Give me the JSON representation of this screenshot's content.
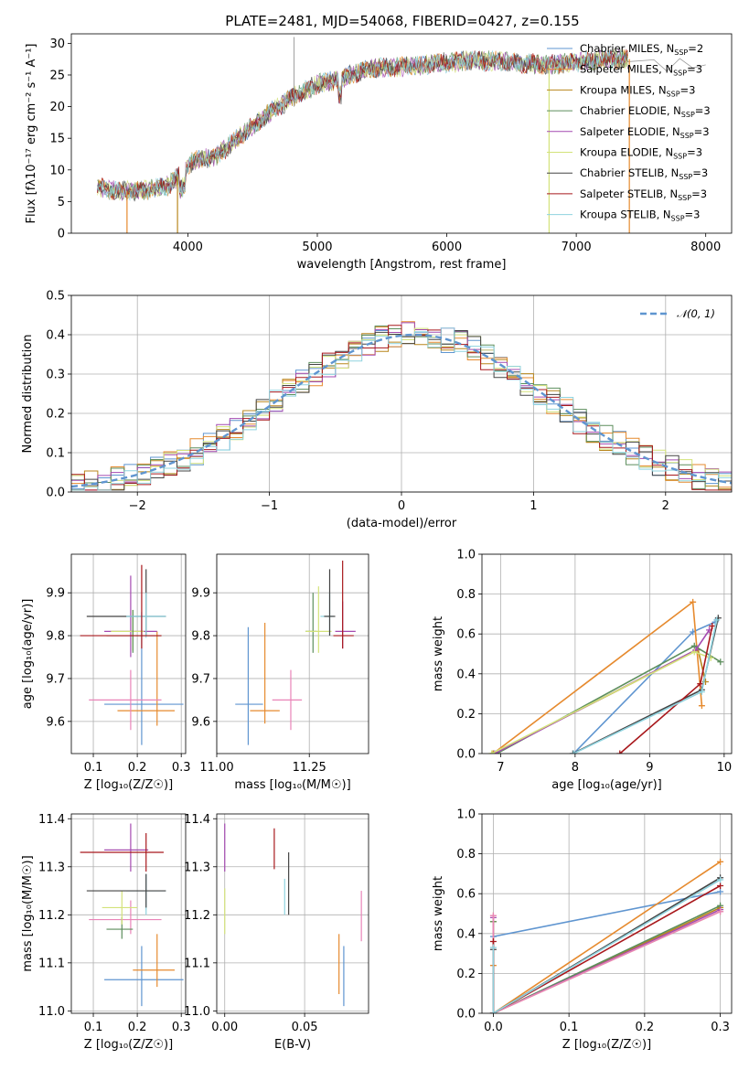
{
  "figure": {
    "title": "PLATE=2481, MJD=54068, FIBERID=0427, z=0.155"
  },
  "colors": {
    "c0": "#5f95d0",
    "c1": "#e68a2e",
    "c2": "#b8861c",
    "c3": "#5c8e5c",
    "c4": "#a44ab0",
    "c5": "#d3e27a",
    "c6": "#444444",
    "c7": "#a8181c",
    "c8": "#8fd3df",
    "c9": "#e984b8"
  },
  "chart_data": [
    {
      "id": "spectrum",
      "type": "line",
      "title": "PLATE=2481, MJD=54068, FIBERID=0427, z=0.155",
      "xlabel": "wavelength [Angstrom, rest frame]",
      "ylabel": "Flux [fλ10⁻¹⁷ erg cm⁻² s⁻¹ A⁻¹]",
      "xlim": [
        3100,
        8200
      ],
      "ylim": [
        0,
        31.5
      ],
      "xticks": [
        4000,
        5000,
        6000,
        7000,
        8000
      ],
      "yticks": [
        0,
        5,
        10,
        15,
        20,
        25,
        30
      ],
      "grid": false,
      "legend": "top-right",
      "series": [
        {
          "name": "Chabrier MILES, N_SSP=2",
          "color": "c0"
        },
        {
          "name": "Salpeter MILES, N_SSP=3",
          "color": "c1"
        },
        {
          "name": "Kroupa MILES, N_SSP=3",
          "color": "c2"
        },
        {
          "name": "Chabrier ELODIE, N_SSP=3",
          "color": "c3"
        },
        {
          "name": "Salpeter ELODIE, N_SSP=3",
          "color": "c4"
        },
        {
          "name": "Kroupa ELODIE, N_SSP=3",
          "color": "c5"
        },
        {
          "name": "Chabrier STELIB, N_SSP=3",
          "color": "c6"
        },
        {
          "name": "Salpeter STELIB, N_SSP=3",
          "color": "c7"
        },
        {
          "name": "Kroupa STELIB, N_SSP=3",
          "color": "c8"
        }
      ],
      "continuum": [
        [
          3300,
          7.2
        ],
        [
          3500,
          6.6
        ],
        [
          3700,
          6.8
        ],
        [
          3850,
          7.5
        ],
        [
          3950,
          9.5
        ],
        [
          4050,
          11.5
        ],
        [
          4200,
          12
        ],
        [
          4300,
          13.5
        ],
        [
          4500,
          17
        ],
        [
          4700,
          20
        ],
        [
          4850,
          22
        ],
        [
          5000,
          23.5
        ],
        [
          5200,
          24.5
        ],
        [
          5400,
          26
        ],
        [
          5600,
          26.2
        ],
        [
          5800,
          26.5
        ],
        [
          6000,
          27
        ],
        [
          6200,
          27.3
        ],
        [
          6400,
          27.2
        ],
        [
          6600,
          26.8
        ],
        [
          6800,
          26.6
        ],
        [
          7000,
          27
        ],
        [
          7200,
          27.4
        ],
        [
          7400,
          27.5
        ]
      ],
      "tail": [
        [
          7400,
          27.5
        ],
        [
          7600,
          26.8
        ],
        [
          7700,
          26
        ],
        [
          7800,
          27
        ],
        [
          7900,
          26.5
        ],
        [
          8000,
          26
        ]
      ]
    },
    {
      "id": "residuals",
      "type": "step",
      "xlabel": "(data-model)/error",
      "ylabel": "Normed distribution",
      "xlim": [
        -2.5,
        2.5
      ],
      "ylim": [
        0,
        0.5
      ],
      "xticks": [
        -2,
        -1,
        0,
        1,
        2
      ],
      "xtick_labels": [
        "−2",
        "−1",
        "0",
        "1",
        "2"
      ],
      "yticks": [
        0,
        0.1,
        0.2,
        0.3,
        0.4,
        0.5
      ],
      "ytick_labels": [
        "0.0",
        "0.1",
        "0.2",
        "0.3",
        "0.4",
        "0.5"
      ],
      "grid": true,
      "legend": "top-right",
      "reference": {
        "name": "𝒩(0, 1)",
        "color": "c0",
        "mean": 0.1,
        "sigma": 1.0,
        "peak": 0.4
      },
      "bin_width": 0.1,
      "series_colors": [
        "c0",
        "c1",
        "c2",
        "c3",
        "c4",
        "c5",
        "c6",
        "c7",
        "c8"
      ]
    },
    {
      "id": "age-vs-Z",
      "type": "errorbar",
      "xlabel": "Z [log₁₀(Z/Z☉)]",
      "ylabel": "age  [log₁₀(age/yr)]",
      "xlim": [
        0.05,
        0.31
      ],
      "ylim": [
        9.525,
        9.99
      ],
      "xticks": [
        0.1,
        0.2,
        0.3
      ],
      "xtick_labels": [
        "0.1",
        "0.2",
        "0.3"
      ],
      "yticks": [
        9.6,
        9.7,
        9.8,
        9.9
      ],
      "ytick_labels": [
        "9.6",
        "9.7",
        "9.8",
        "9.9"
      ],
      "grid": true,
      "points": [
        {
          "color": "c0",
          "x": 0.21,
          "xerr": [
            0.125,
            0.305
          ],
          "y": 9.64,
          "yerr": [
            9.545,
            9.855
          ]
        },
        {
          "color": "c1",
          "x": 0.245,
          "xerr": [
            0.155,
            0.285
          ],
          "y": 9.625,
          "yerr": [
            9.59,
            9.81
          ]
        },
        {
          "color": "c9",
          "x": 0.185,
          "xerr": [
            0.09,
            0.255
          ],
          "y": 9.65,
          "yerr": [
            9.58,
            9.72
          ]
        },
        {
          "color": "c4",
          "x": 0.185,
          "xerr": [
            0.125,
            0.245
          ],
          "y": 9.81,
          "yerr": [
            9.75,
            9.94
          ]
        },
        {
          "color": "c5",
          "x": 0.19,
          "xerr": [
            0.14,
            0.215
          ],
          "y": 9.81,
          "yerr": [
            9.765,
            9.86
          ]
        },
        {
          "color": "c3",
          "x": 0.19,
          "xerr": [
            0.13,
            0.255
          ],
          "y": 9.8,
          "yerr": [
            9.76,
            9.86
          ]
        },
        {
          "color": "c6",
          "x": 0.22,
          "xerr": [
            0.085,
            0.265
          ],
          "y": 9.845,
          "yerr": [
            9.8,
            9.955
          ]
        },
        {
          "color": "c8",
          "x": 0.22,
          "xerr": [
            0.175,
            0.265
          ],
          "y": 9.845,
          "yerr": [
            9.795,
            9.9
          ]
        },
        {
          "color": "c7",
          "x": 0.21,
          "xerr": [
            0.07,
            0.255
          ],
          "y": 9.8,
          "yerr": [
            9.77,
            9.965
          ]
        }
      ]
    },
    {
      "id": "age-vs-mass",
      "type": "errorbar",
      "xlabel": "mass [log₁₀(M/M☉)]",
      "xlim": [
        11.0,
        11.41
      ],
      "ylim": [
        9.525,
        9.99
      ],
      "xticks": [
        11.0,
        11.25
      ],
      "xtick_labels": [
        "11.00",
        "11.25"
      ],
      "yticks": [
        9.6,
        9.7,
        9.8,
        9.9
      ],
      "ytick_labels": [
        "9.6",
        "9.7",
        "9.8",
        "9.9"
      ],
      "grid": true,
      "points": [
        {
          "color": "c0",
          "x": 11.085,
          "xerr": [
            11.05,
            11.125
          ],
          "y": 9.64,
          "yerr": [
            9.545,
            9.82
          ]
        },
        {
          "color": "c1",
          "x": 11.13,
          "xerr": [
            11.09,
            11.17
          ],
          "y": 9.625,
          "yerr": [
            9.595,
            9.83
          ]
        },
        {
          "color": "c9",
          "x": 11.2,
          "xerr": [
            11.15,
            11.23
          ],
          "y": 9.65,
          "yerr": [
            9.58,
            9.72
          ]
        },
        {
          "color": "c3",
          "x": 11.26,
          "xerr": [
            11.24,
            11.27
          ],
          "y": 9.81,
          "yerr": [
            9.76,
            9.9
          ]
        },
        {
          "color": "c5",
          "x": 11.275,
          "xerr": [
            11.24,
            11.31
          ],
          "y": 9.81,
          "yerr": [
            9.76,
            9.915
          ]
        },
        {
          "color": "c8",
          "x": 11.305,
          "xerr": [
            11.28,
            11.315
          ],
          "y": 9.845,
          "yerr": [
            9.8,
            9.9
          ]
        },
        {
          "color": "c6",
          "x": 11.305,
          "xerr": [
            11.29,
            11.32
          ],
          "y": 9.845,
          "yerr": [
            9.8,
            9.955
          ]
        },
        {
          "color": "c4",
          "x": 11.34,
          "xerr": [
            11.32,
            11.375
          ],
          "y": 9.81,
          "yerr": [
            9.77,
            9.88
          ]
        },
        {
          "color": "c7",
          "x": 11.34,
          "xerr": [
            11.315,
            11.37
          ],
          "y": 9.8,
          "yerr": [
            9.77,
            9.975
          ]
        }
      ]
    },
    {
      "id": "weight-vs-age",
      "type": "line",
      "xlabel": "age  [log₁₀(age/yr)]",
      "ylabel": "mass weight",
      "xlim": [
        6.75,
        10.1
      ],
      "ylim": [
        0,
        1
      ],
      "xticks": [
        7,
        8,
        9,
        10
      ],
      "xtick_labels": [
        "7",
        "8",
        "9",
        "10"
      ],
      "yticks": [
        0,
        0.2,
        0.4,
        0.6,
        0.8,
        1.0
      ],
      "ytick_labels": [
        "0.0",
        "0.2",
        "0.4",
        "0.6",
        "0.8",
        "1.0"
      ],
      "grid": true,
      "series": [
        {
          "color": "c0",
          "x": [
            7.98,
            9.58,
            9.88
          ],
          "y": [
            0.0,
            0.61,
            0.66
          ]
        },
        {
          "color": "c1",
          "x": [
            6.9,
            9.58,
            9.7
          ],
          "y": [
            0.0,
            0.76,
            0.24
          ]
        },
        {
          "color": "c2",
          "x": [
            6.9,
            9.65,
            9.75
          ],
          "y": [
            0.0,
            0.52,
            0.36
          ]
        },
        {
          "color": "c3",
          "x": [
            6.95,
            9.6,
            9.95
          ],
          "y": [
            0.0,
            0.54,
            0.46
          ]
        },
        {
          "color": "c4",
          "x": [
            6.92,
            9.62,
            9.8
          ],
          "y": [
            0.0,
            0.52,
            0.62
          ]
        },
        {
          "color": "c5",
          "x": [
            6.88,
            9.6,
            9.82
          ],
          "y": [
            0.0,
            0.51,
            0.48
          ]
        },
        {
          "color": "c6",
          "x": [
            7.97,
            9.7,
            9.92
          ],
          "y": [
            0.0,
            0.32,
            0.68
          ]
        },
        {
          "color": "c7",
          "x": [
            8.6,
            9.68,
            9.84
          ],
          "y": [
            0.0,
            0.35,
            0.64
          ]
        },
        {
          "color": "c8",
          "x": [
            7.98,
            9.7,
            9.9
          ],
          "y": [
            0.0,
            0.31,
            0.67
          ]
        }
      ]
    },
    {
      "id": "mass-vs-Z",
      "type": "errorbar",
      "xlabel": "Z [log₁₀(Z/Z☉)]",
      "ylabel": "mass [log₁₀(M/M☉)]",
      "xlim": [
        0.05,
        0.31
      ],
      "ylim": [
        10.995,
        11.41
      ],
      "xticks": [
        0.1,
        0.2,
        0.3
      ],
      "xtick_labels": [
        "0.1",
        "0.2",
        "0.3"
      ],
      "yticks": [
        11.0,
        11.1,
        11.2,
        11.3,
        11.4
      ],
      "ytick_labels": [
        "11.0",
        "11.1",
        "11.2",
        "11.3",
        "11.4"
      ],
      "grid": true,
      "points": [
        {
          "color": "c0",
          "x": 0.21,
          "xerr": [
            0.125,
            0.305
          ],
          "y": 11.065,
          "yerr": [
            11.01,
            11.135
          ]
        },
        {
          "color": "c1",
          "x": 0.245,
          "xerr": [
            0.19,
            0.285
          ],
          "y": 11.085,
          "yerr": [
            11.05,
            11.16
          ]
        },
        {
          "color": "c9",
          "x": 0.185,
          "xerr": [
            0.09,
            0.255
          ],
          "y": 11.19,
          "yerr": [
            11.16,
            11.23
          ]
        },
        {
          "color": "c3",
          "x": 0.165,
          "xerr": [
            0.13,
            0.19
          ],
          "y": 11.17,
          "yerr": [
            11.15,
            11.195
          ]
        },
        {
          "color": "c5",
          "x": 0.165,
          "xerr": [
            0.12,
            0.2
          ],
          "y": 11.215,
          "yerr": [
            11.18,
            11.25
          ]
        },
        {
          "color": "c8",
          "x": 0.22,
          "xerr": [
            0.175,
            0.265
          ],
          "y": 11.25,
          "yerr": [
            11.2,
            11.285
          ]
        },
        {
          "color": "c6",
          "x": 0.22,
          "xerr": [
            0.085,
            0.265
          ],
          "y": 11.25,
          "yerr": [
            11.215,
            11.285
          ]
        },
        {
          "color": "c4",
          "x": 0.185,
          "xerr": [
            0.125,
            0.225
          ],
          "y": 11.335,
          "yerr": [
            11.29,
            11.39
          ]
        },
        {
          "color": "c7",
          "x": 0.22,
          "xerr": [
            0.07,
            0.26
          ],
          "y": 11.33,
          "yerr": [
            11.29,
            11.37
          ]
        }
      ]
    },
    {
      "id": "mass-vs-ebv",
      "type": "errorbar",
      "xlabel": "E(B-V)",
      "xlim": [
        -0.005,
        0.09
      ],
      "ylim": [
        10.995,
        11.41
      ],
      "xticks": [
        0.0,
        0.05
      ],
      "xtick_labels": [
        "0.00",
        "0.05"
      ],
      "yticks": [
        11.0,
        11.1,
        11.2,
        11.3,
        11.4
      ],
      "ytick_labels": [
        "11.0",
        "11.1",
        "11.2",
        "11.3",
        "11.4"
      ],
      "grid": true,
      "points": [
        {
          "color": "c4",
          "x": 0.0,
          "y": 11.34,
          "yerr": [
            11.29,
            11.39
          ]
        },
        {
          "color": "c5",
          "x": 0.0,
          "y": 11.21,
          "yerr": [
            11.16,
            11.255
          ]
        },
        {
          "color": "c7",
          "x": 0.031,
          "y": 11.335,
          "yerr": [
            11.295,
            11.38
          ]
        },
        {
          "color": "c6",
          "x": 0.04,
          "y": 11.265,
          "yerr": [
            11.2,
            11.33
          ]
        },
        {
          "color": "c8",
          "x": 0.0375,
          "y": 11.24,
          "yerr": [
            11.2,
            11.275
          ]
        },
        {
          "color": "c1",
          "x": 0.0715,
          "y": 11.095,
          "yerr": [
            11.035,
            11.16
          ]
        },
        {
          "color": "c0",
          "x": 0.0745,
          "y": 11.075,
          "yerr": [
            11.01,
            11.135
          ]
        },
        {
          "color": "c9",
          "x": 0.0855,
          "y": 11.2,
          "yerr": [
            11.145,
            11.25
          ]
        }
      ]
    },
    {
      "id": "weight-vs-Z",
      "type": "line",
      "xlabel": "Z [log₁₀(Z/Z☉)]",
      "ylabel": "mass weight",
      "xlim": [
        -0.015,
        0.315
      ],
      "ylim": [
        0,
        1
      ],
      "xticks": [
        0.0,
        0.1,
        0.2,
        0.3
      ],
      "xtick_labels": [
        "0.0",
        "0.1",
        "0.2",
        "0.3"
      ],
      "yticks": [
        0,
        0.2,
        0.4,
        0.6,
        0.8,
        1.0
      ],
      "ytick_labels": [
        "0.0",
        "0.2",
        "0.4",
        "0.6",
        "0.8",
        "1.0"
      ],
      "grid": true,
      "series": [
        {
          "color": "c0",
          "x": [
            0.0,
            0.0,
            0.3
          ],
          "y": [
            0.0,
            0.385,
            0.61
          ]
        },
        {
          "color": "c1",
          "x": [
            0.0,
            0.0,
            0.3
          ],
          "y": [
            0.24,
            0.0,
            0.76
          ]
        },
        {
          "color": "c2",
          "x": [
            0.0,
            0.0,
            0.3
          ],
          "y": [
            0.46,
            0.0,
            0.53
          ]
        },
        {
          "color": "c3",
          "x": [
            0.0,
            0.0,
            0.3
          ],
          "y": [
            0.46,
            0.0,
            0.54
          ]
        },
        {
          "color": "c4",
          "x": [
            0.0,
            0.0,
            0.3
          ],
          "y": [
            0.48,
            0.0,
            0.52
          ]
        },
        {
          "color": "c5",
          "x": [
            0.0,
            0.0,
            0.3
          ],
          "y": [
            0.49,
            0.0,
            0.51
          ]
        },
        {
          "color": "c9",
          "x": [
            0.0,
            0.0,
            0.3
          ],
          "y": [
            0.49,
            0.0,
            0.51
          ]
        },
        {
          "color": "c6",
          "x": [
            0.0,
            0.0,
            0.3
          ],
          "y": [
            0.32,
            0.0,
            0.68
          ]
        },
        {
          "color": "c7",
          "x": [
            0.0,
            0.0,
            0.3
          ],
          "y": [
            0.36,
            0.0,
            0.64
          ]
        },
        {
          "color": "c8",
          "x": [
            0.0,
            0.0,
            0.3
          ],
          "y": [
            0.33,
            0.0,
            0.67
          ]
        }
      ]
    }
  ]
}
